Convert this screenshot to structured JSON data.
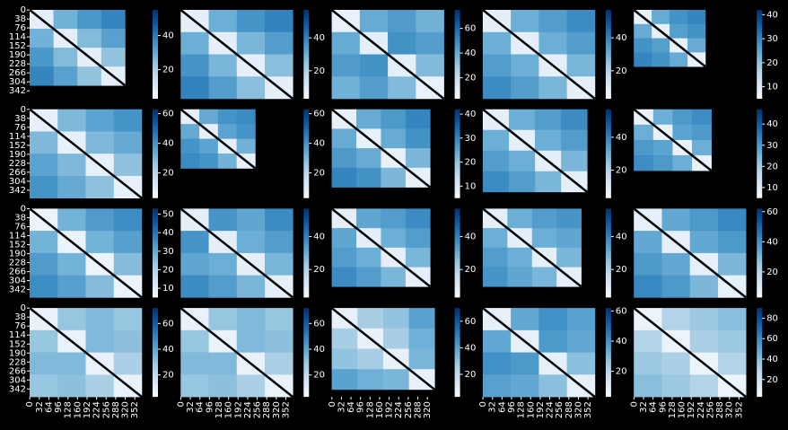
{
  "chart_data": [
    {
      "type": "heatmap",
      "size": 320,
      "xlim": [
        0,
        376
      ],
      "ylim": [
        0,
        376
      ],
      "yticks": [
        0,
        38,
        76,
        114,
        152,
        190,
        228,
        266,
        304,
        342
      ],
      "values": [
        [
          8,
          28,
          34,
          38
        ],
        [
          28,
          8,
          26,
          32
        ],
        [
          34,
          26,
          8,
          24
        ],
        [
          38,
          32,
          24,
          8
        ]
      ],
      "clim": [
        3,
        55
      ],
      "cticks": [
        20,
        40
      ]
    },
    {
      "type": "heatmap",
      "size": 376,
      "xlim": [
        0,
        376
      ],
      "ylim": [
        0,
        376
      ],
      "values": [
        [
          8,
          30,
          36,
          40
        ],
        [
          30,
          8,
          28,
          34
        ],
        [
          36,
          28,
          8,
          26
        ],
        [
          40,
          34,
          26,
          8
        ]
      ],
      "clim": [
        3,
        57
      ],
      "cticks": [
        20,
        40
      ]
    },
    {
      "type": "heatmap",
      "size": 376,
      "xlim": [
        0,
        376
      ],
      "ylim": [
        0,
        376
      ],
      "values": [
        [
          8,
          40,
          45,
          38
        ],
        [
          40,
          10,
          48,
          44
        ],
        [
          45,
          48,
          10,
          35
        ],
        [
          38,
          44,
          35,
          8
        ]
      ],
      "clim": [
        3,
        75
      ],
      "cticks": [
        20,
        40,
        60
      ]
    },
    {
      "type": "heatmap",
      "size": 376,
      "xlim": [
        0,
        376
      ],
      "ylim": [
        0,
        376
      ],
      "values": [
        [
          8,
          30,
          34,
          38
        ],
        [
          30,
          8,
          30,
          34
        ],
        [
          34,
          30,
          8,
          28
        ],
        [
          38,
          34,
          28,
          8
        ]
      ],
      "clim": [
        3,
        57
      ],
      "cticks": [
        20,
        40
      ]
    },
    {
      "type": "heatmap",
      "size": 240,
      "xlim": [
        0,
        376
      ],
      "ylim": [
        0,
        376
      ],
      "values": [
        [
          8,
          24,
          28,
          30
        ],
        [
          24,
          8,
          26,
          28
        ],
        [
          28,
          26,
          8,
          24
        ],
        [
          30,
          28,
          24,
          8
        ]
      ],
      "clim": [
        5,
        42
      ],
      "cticks": [
        10,
        20,
        30,
        40
      ]
    },
    {
      "type": "heatmap",
      "size": 376,
      "xlim": [
        0,
        376
      ],
      "ylim": [
        0,
        376
      ],
      "yticks": [
        0,
        38,
        76,
        114,
        152,
        190,
        228,
        266,
        304,
        342
      ],
      "values": [
        [
          8,
          30,
          36,
          40
        ],
        [
          30,
          8,
          30,
          34
        ],
        [
          36,
          30,
          8,
          28
        ],
        [
          40,
          34,
          28,
          8
        ]
      ],
      "clim": [
        3,
        63
      ],
      "cticks": [
        20,
        40,
        60
      ]
    },
    {
      "type": "heatmap",
      "size": 250,
      "xlim": [
        0,
        376
      ],
      "ylim": [
        0,
        376
      ],
      "values": [
        [
          8,
          34,
          40,
          42
        ],
        [
          34,
          8,
          36,
          40
        ],
        [
          40,
          36,
          8,
          32
        ],
        [
          42,
          40,
          32,
          8
        ]
      ],
      "clim": [
        3,
        63
      ],
      "cticks": [
        20,
        40,
        60
      ]
    },
    {
      "type": "heatmap",
      "size": 330,
      "xlim": [
        0,
        376
      ],
      "ylim": [
        0,
        376
      ],
      "values": [
        [
          8,
          24,
          27,
          30
        ],
        [
          24,
          8,
          24,
          28
        ],
        [
          27,
          24,
          8,
          22
        ],
        [
          30,
          28,
          22,
          8
        ]
      ],
      "clim": [
        5,
        42
      ],
      "cticks": [
        10,
        20,
        30,
        40
      ]
    },
    {
      "type": "heatmap",
      "size": 350,
      "xlim": [
        0,
        376
      ],
      "ylim": [
        0,
        376
      ],
      "values": [
        [
          8,
          30,
          34,
          38
        ],
        [
          30,
          8,
          30,
          34
        ],
        [
          34,
          30,
          8,
          28
        ],
        [
          38,
          34,
          28,
          8
        ]
      ],
      "clim": [
        3,
        57
      ],
      "cticks": [
        20,
        40
      ]
    },
    {
      "type": "heatmap",
      "size": 260,
      "xlim": [
        0,
        376
      ],
      "ylim": [
        0,
        376
      ],
      "values": [
        [
          8,
          26,
          30,
          32
        ],
        [
          26,
          8,
          28,
          30
        ],
        [
          30,
          28,
          8,
          26
        ],
        [
          32,
          30,
          26,
          8
        ]
      ],
      "clim": [
        5,
        47
      ],
      "cticks": [
        10,
        20,
        30,
        40
      ]
    },
    {
      "type": "heatmap",
      "size": 376,
      "xlim": [
        0,
        376
      ],
      "ylim": [
        0,
        376
      ],
      "yticks": [
        0,
        38,
        76,
        114,
        152,
        190,
        228,
        266,
        304,
        342
      ],
      "values": [
        [
          8,
          28,
          33,
          36
        ],
        [
          28,
          8,
          28,
          32
        ],
        [
          33,
          28,
          8,
          26
        ],
        [
          36,
          32,
          26,
          8
        ]
      ],
      "clim": [
        5,
        53
      ],
      "cticks": [
        10,
        20,
        30,
        40,
        50
      ]
    },
    {
      "type": "heatmap",
      "size": 376,
      "xlim": [
        0,
        376
      ],
      "ylim": [
        0,
        376
      ],
      "values": [
        [
          8,
          36,
          32,
          38
        ],
        [
          36,
          8,
          30,
          34
        ],
        [
          32,
          30,
          8,
          28
        ],
        [
          38,
          34,
          28,
          8
        ]
      ],
      "clim": [
        3,
        57
      ],
      "cticks": [
        20,
        40
      ]
    },
    {
      "type": "heatmap",
      "size": 330,
      "xlim": [
        0,
        376
      ],
      "ylim": [
        0,
        376
      ],
      "values": [
        [
          8,
          32,
          34,
          38
        ],
        [
          32,
          8,
          30,
          34
        ],
        [
          34,
          30,
          8,
          28
        ],
        [
          38,
          34,
          28,
          8
        ]
      ],
      "clim": [
        3,
        57
      ],
      "cticks": [
        20,
        40
      ]
    },
    {
      "type": "heatmap",
      "size": 330,
      "xlim": [
        0,
        376
      ],
      "ylim": [
        0,
        376
      ],
      "values": [
        [
          8,
          30,
          34,
          36
        ],
        [
          30,
          8,
          30,
          32
        ],
        [
          34,
          30,
          8,
          28
        ],
        [
          36,
          32,
          28,
          8
        ]
      ],
      "clim": [
        3,
        57
      ],
      "cticks": [
        20,
        40
      ]
    },
    {
      "type": "heatmap",
      "size": 376,
      "xlim": [
        0,
        376
      ],
      "ylim": [
        0,
        376
      ],
      "values": [
        [
          8,
          34,
          38,
          42
        ],
        [
          34,
          8,
          34,
          38
        ],
        [
          38,
          34,
          8,
          30
        ],
        [
          42,
          38,
          30,
          8
        ]
      ],
      "clim": [
        3,
        62
      ],
      "cticks": [
        20,
        40,
        60
      ]
    },
    {
      "type": "heatmap",
      "size": 376,
      "xlim": [
        0,
        376
      ],
      "ylim": [
        0,
        376
      ],
      "yticks": [
        0,
        38,
        76,
        114,
        152,
        190,
        228,
        266,
        304,
        342
      ],
      "xticks": [
        0,
        32,
        64,
        96,
        128,
        160,
        192,
        224,
        256,
        288,
        320,
        352
      ],
      "values": [
        [
          8,
          30,
          34,
          30
        ],
        [
          30,
          8,
          34,
          32
        ],
        [
          34,
          34,
          8,
          26
        ],
        [
          30,
          32,
          26,
          8
        ]
      ],
      "clim": [
        3,
        72
      ],
      "cticks": [
        20,
        40,
        60
      ]
    },
    {
      "type": "heatmap",
      "size": 376,
      "xlim": [
        0,
        376
      ],
      "ylim": [
        0,
        376
      ],
      "xticks": [
        0,
        32,
        64,
        96,
        128,
        160,
        192,
        224,
        256,
        288,
        320,
        352
      ],
      "values": [
        [
          8,
          30,
          34,
          30
        ],
        [
          30,
          8,
          34,
          32
        ],
        [
          34,
          34,
          8,
          26
        ],
        [
          30,
          32,
          26,
          8
        ]
      ],
      "clim": [
        3,
        72
      ],
      "cticks": [
        20,
        40,
        60
      ]
    },
    {
      "type": "heatmap",
      "size": 345,
      "xlim": [
        0,
        376
      ],
      "ylim": [
        0,
        376
      ],
      "xticks": [
        0,
        32,
        64,
        96,
        128,
        160,
        192,
        224,
        256,
        288,
        320
      ],
      "values": [
        [
          8,
          26,
          30,
          40
        ],
        [
          26,
          8,
          26,
          36
        ],
        [
          30,
          26,
          8,
          34
        ],
        [
          40,
          36,
          34,
          8
        ]
      ],
      "clim": [
        3,
        70
      ],
      "cticks": [
        20,
        40,
        60
      ]
    },
    {
      "type": "heatmap",
      "size": 376,
      "xlim": [
        0,
        376
      ],
      "ylim": [
        0,
        376
      ],
      "xticks": [
        0,
        32,
        64,
        96,
        128,
        160,
        192,
        224,
        256,
        288,
        320,
        352
      ],
      "values": [
        [
          8,
          34,
          40,
          36
        ],
        [
          34,
          8,
          38,
          34
        ],
        [
          40,
          38,
          8,
          28
        ],
        [
          36,
          34,
          28,
          8
        ]
      ],
      "clim": [
        3,
        62
      ],
      "cticks": [
        20,
        40,
        60
      ]
    },
    {
      "type": "heatmap",
      "size": 376,
      "xlim": [
        0,
        376
      ],
      "ylim": [
        0,
        376
      ],
      "xticks": [
        0,
        32,
        64,
        96,
        128,
        160,
        192,
        224,
        256,
        288,
        320,
        352
      ],
      "values": [
        [
          8,
          30,
          36,
          40
        ],
        [
          30,
          8,
          32,
          36
        ],
        [
          36,
          32,
          8,
          30
        ],
        [
          40,
          36,
          30,
          8
        ]
      ],
      "clim": [
        3,
        90
      ],
      "cticks": [
        20,
        40,
        60,
        80
      ]
    }
  ],
  "colormap": [
    "#f7fbff",
    "#deebf7",
    "#c6dbef",
    "#9ecae1",
    "#6baed6",
    "#4292c6",
    "#2171b5",
    "#08519c",
    "#08306b"
  ]
}
